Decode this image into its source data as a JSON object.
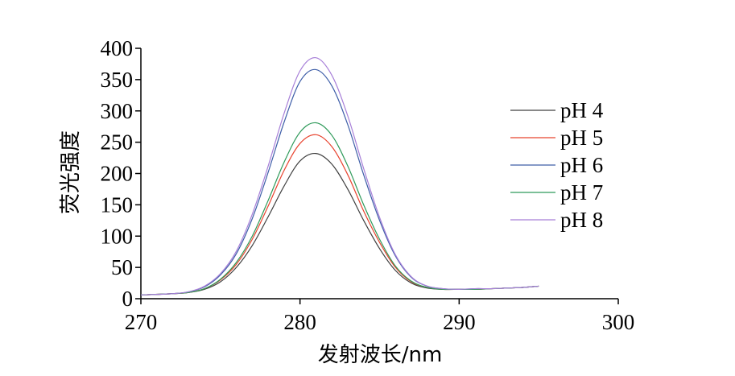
{
  "chart_data": {
    "type": "line",
    "title": "",
    "xlabel": "发射波长/nm",
    "ylabel": "荧光强度",
    "xlim": [
      270,
      300
    ],
    "ylim": [
      0,
      400
    ],
    "xticks": [
      "270",
      "280",
      "290",
      "300"
    ],
    "yticks": [
      "0",
      "50",
      "100",
      "150",
      "200",
      "250",
      "300",
      "350",
      "400"
    ],
    "grid": false,
    "legend_position": "right",
    "x": [
      270,
      272,
      273,
      274,
      275,
      276,
      277,
      278,
      279,
      280,
      281,
      282,
      283,
      284,
      285,
      286,
      287,
      288,
      289,
      290,
      291,
      292,
      293,
      294,
      295
    ],
    "series": [
      {
        "name": "pH 4",
        "color": "#404040",
        "values": [
          6,
          8,
          10,
          15,
          27,
          50,
          85,
          131,
          180,
          220,
          232,
          215,
          175,
          125,
          80,
          45,
          25,
          17,
          15,
          15,
          15,
          16,
          17,
          18,
          20
        ]
      },
      {
        "name": "pH 5",
        "color": "#e8432e",
        "values": [
          6,
          8,
          10,
          16,
          30,
          55,
          95,
          148,
          205,
          248,
          262,
          243,
          198,
          140,
          90,
          50,
          27,
          18,
          15,
          15,
          15,
          16,
          17,
          18,
          20
        ]
      },
      {
        "name": "pH 6",
        "color": "#3e5ea8",
        "values": [
          6,
          8,
          11,
          19,
          38,
          72,
          128,
          202,
          282,
          347,
          366,
          340,
          278,
          198,
          125,
          68,
          34,
          20,
          16,
          15,
          16,
          16,
          17,
          18,
          20
        ]
      },
      {
        "name": "pH 7",
        "color": "#2f9a5a",
        "values": [
          6,
          8,
          10,
          16,
          31,
          58,
          100,
          157,
          218,
          266,
          281,
          261,
          212,
          150,
          95,
          52,
          28,
          18,
          15,
          15,
          15,
          16,
          17,
          18,
          20
        ]
      },
      {
        "name": "pH 8",
        "color": "#a77fd8",
        "values": [
          6,
          8,
          11,
          20,
          40,
          76,
          135,
          212,
          296,
          364,
          385,
          357,
          292,
          208,
          130,
          70,
          35,
          20,
          16,
          15,
          16,
          16,
          17,
          18,
          20
        ]
      }
    ]
  }
}
